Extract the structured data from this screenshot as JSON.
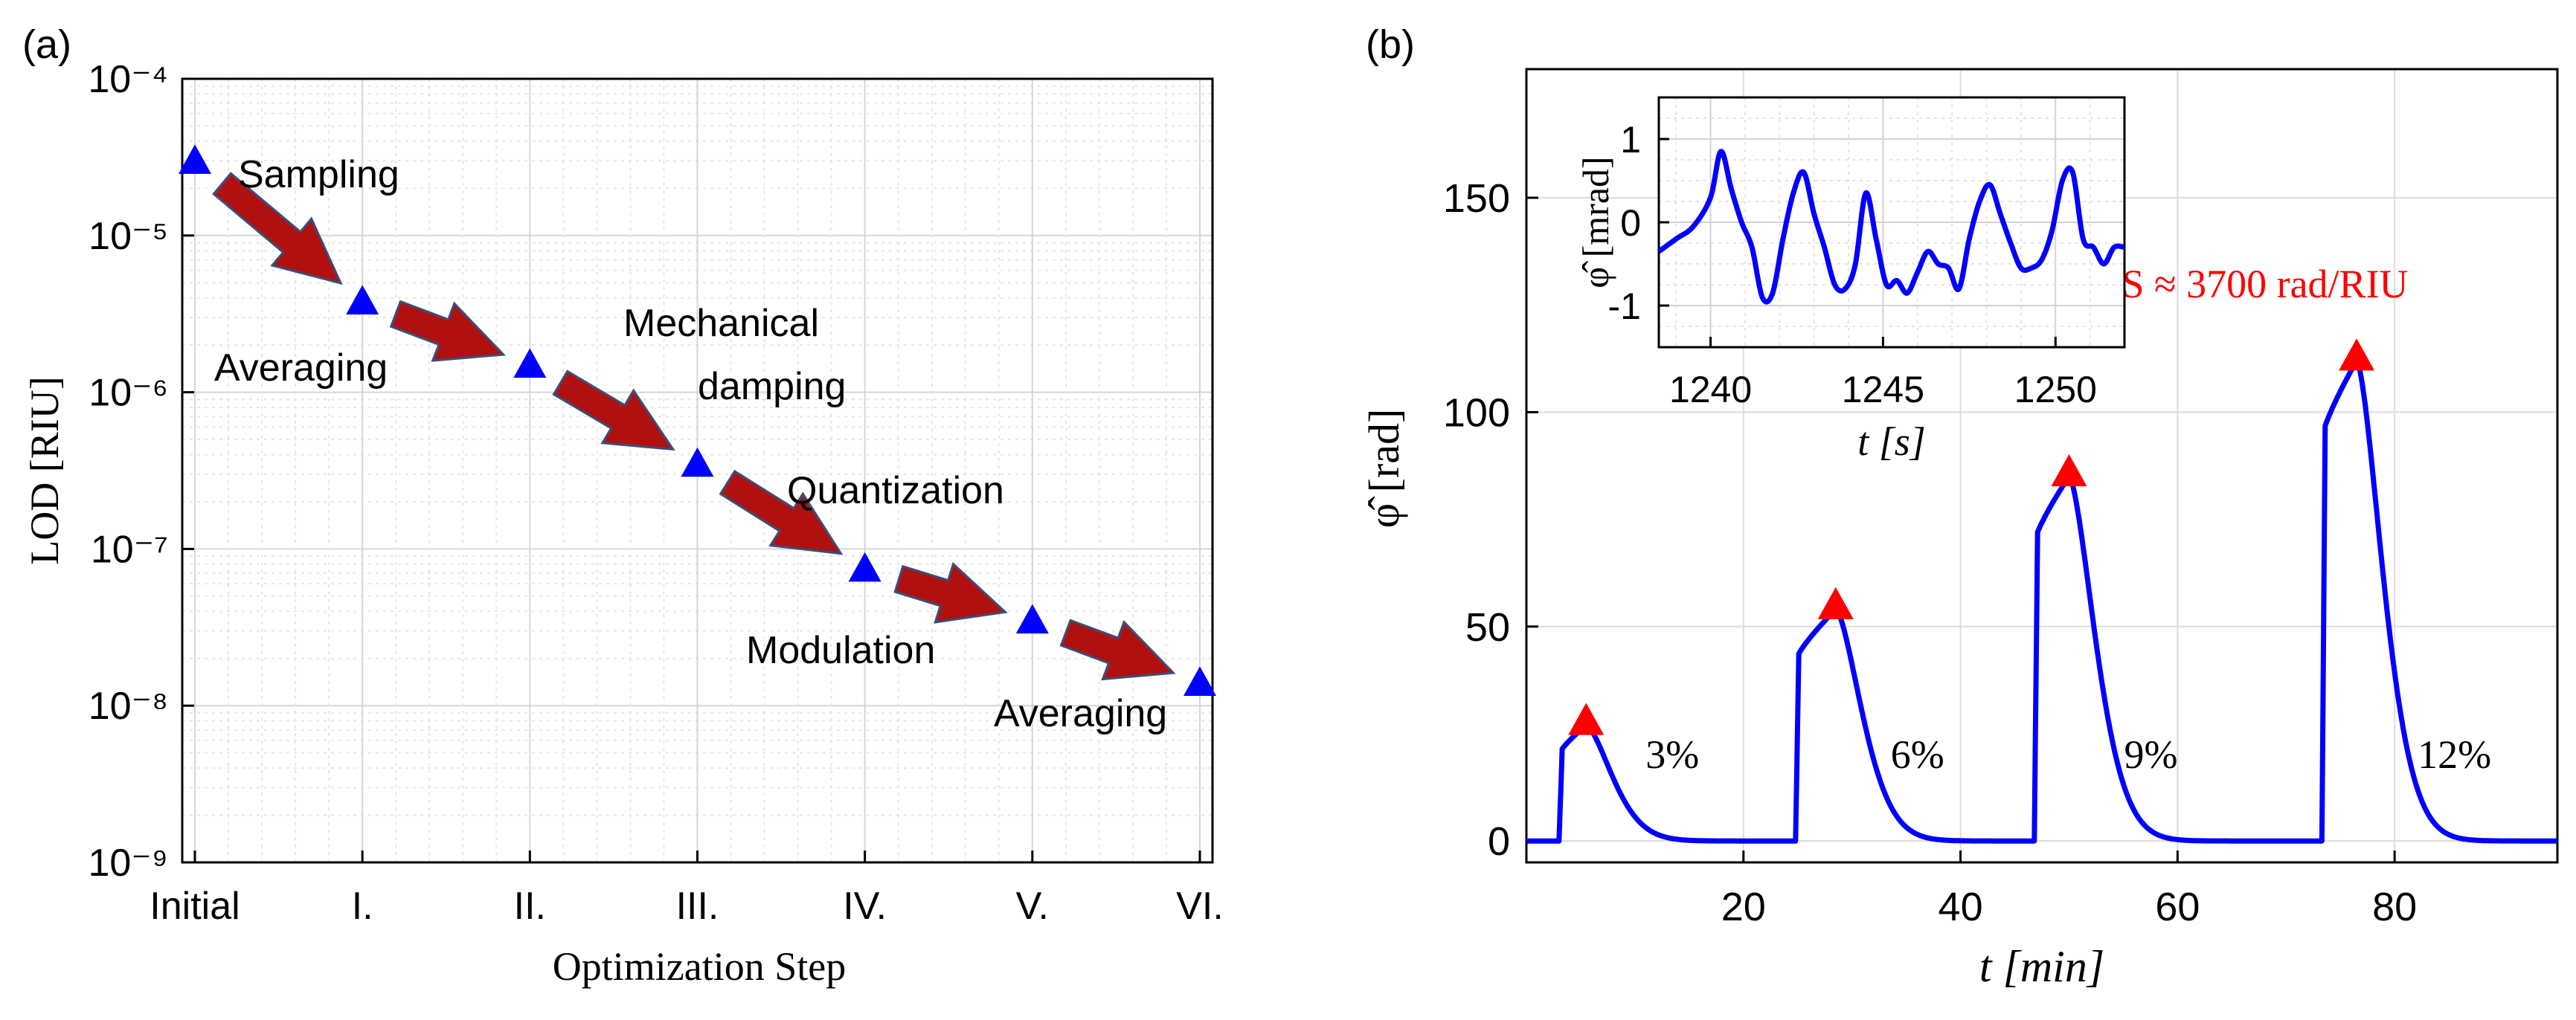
{
  "panel_a": {
    "label": "(a)",
    "chart_data": {
      "type": "scatter",
      "yscale": "log",
      "categories": [
        "Initial",
        "I.",
        "II.",
        "III.",
        "IV.",
        "V.",
        "VI."
      ],
      "values": [
        3e-05,
        3.8e-06,
        1.5e-06,
        3.5e-07,
        7.5e-08,
        3.5e-08,
        1.4e-08
      ],
      "xlabel": "Optimization Step",
      "ylabel": "LOD [RIU]",
      "ylim": [
        1e-09,
        0.0001
      ],
      "y_ticks": [
        {
          "value": 0.0001,
          "label": "10⁻⁴"
        },
        {
          "value": 1e-05,
          "label": "10⁻⁵"
        },
        {
          "value": 1e-06,
          "label": "10⁻⁶"
        },
        {
          "value": 1e-07,
          "label": "10⁻⁷"
        },
        {
          "value": 1e-08,
          "label": "10⁻⁸"
        },
        {
          "value": 1e-09,
          "label": "10⁻⁹"
        }
      ],
      "marker_color": "#0000ff",
      "arrow_color": "#b01010",
      "grid": true,
      "step_labels": [
        "Sampling",
        "Averaging",
        "Mechanical",
        "damping",
        "Quantization",
        "Modulation",
        "Averaging"
      ]
    }
  },
  "panel_b": {
    "label": "(b)",
    "chart_data": {
      "type": "line",
      "xlabel": "t [min]",
      "ylabel": "φ̂ [rad]",
      "xlim": [
        0,
        95
      ],
      "ylim": [
        -5,
        180
      ],
      "x_ticks": [
        20,
        40,
        60,
        80
      ],
      "y_ticks": [
        0,
        50,
        100,
        150
      ],
      "line_color": "#0000ff",
      "peak_color": "#ff0000",
      "grid": true,
      "peaks": [
        {
          "x": 5.5,
          "y": 27,
          "label": "3%"
        },
        {
          "x": 28.5,
          "y": 54,
          "label": "6%"
        },
        {
          "x": 50.0,
          "y": 85,
          "label": "9%"
        },
        {
          "x": 76.5,
          "y": 112,
          "label": "12%"
        }
      ],
      "sensitivity_label": "S ≈ 3700 rad/RIU"
    },
    "inset": {
      "chart_data": {
        "type": "line",
        "xlabel": "t [s]",
        "ylabel": "φ̂ [mrad]",
        "xlim": [
          1238.5,
          1252
        ],
        "ylim": [
          -1.5,
          1.5
        ],
        "x_ticks": [
          1240,
          1245,
          1250
        ],
        "y_ticks": [
          1,
          0,
          -1
        ],
        "x": [
          1238.5,
          1239.0,
          1239.5,
          1240.0,
          1240.3,
          1240.6,
          1240.9,
          1241.2,
          1241.5,
          1241.8,
          1242.1,
          1242.4,
          1242.7,
          1243.0,
          1243.3,
          1243.6,
          1243.9,
          1244.2,
          1244.5,
          1244.8,
          1245.1,
          1245.4,
          1245.7,
          1246.0,
          1246.3,
          1246.6,
          1246.9,
          1247.2,
          1247.5,
          1247.8,
          1248.1,
          1248.4,
          1248.7,
          1249.0,
          1249.3,
          1249.6,
          1249.9,
          1250.2,
          1250.5,
          1250.8,
          1251.1,
          1251.4,
          1251.7,
          1252.0
        ],
        "y": [
          -0.35,
          -0.2,
          -0.05,
          0.3,
          0.85,
          0.4,
          0.0,
          -0.3,
          -0.9,
          -0.85,
          -0.2,
          0.35,
          0.6,
          0.1,
          -0.3,
          -0.75,
          -0.8,
          -0.5,
          0.35,
          -0.2,
          -0.75,
          -0.7,
          -0.85,
          -0.6,
          -0.35,
          -0.5,
          -0.55,
          -0.8,
          -0.2,
          0.25,
          0.45,
          0.1,
          -0.25,
          -0.55,
          -0.55,
          -0.45,
          -0.1,
          0.5,
          0.6,
          -0.2,
          -0.3,
          -0.5,
          -0.3,
          -0.3
        ]
      }
    }
  }
}
